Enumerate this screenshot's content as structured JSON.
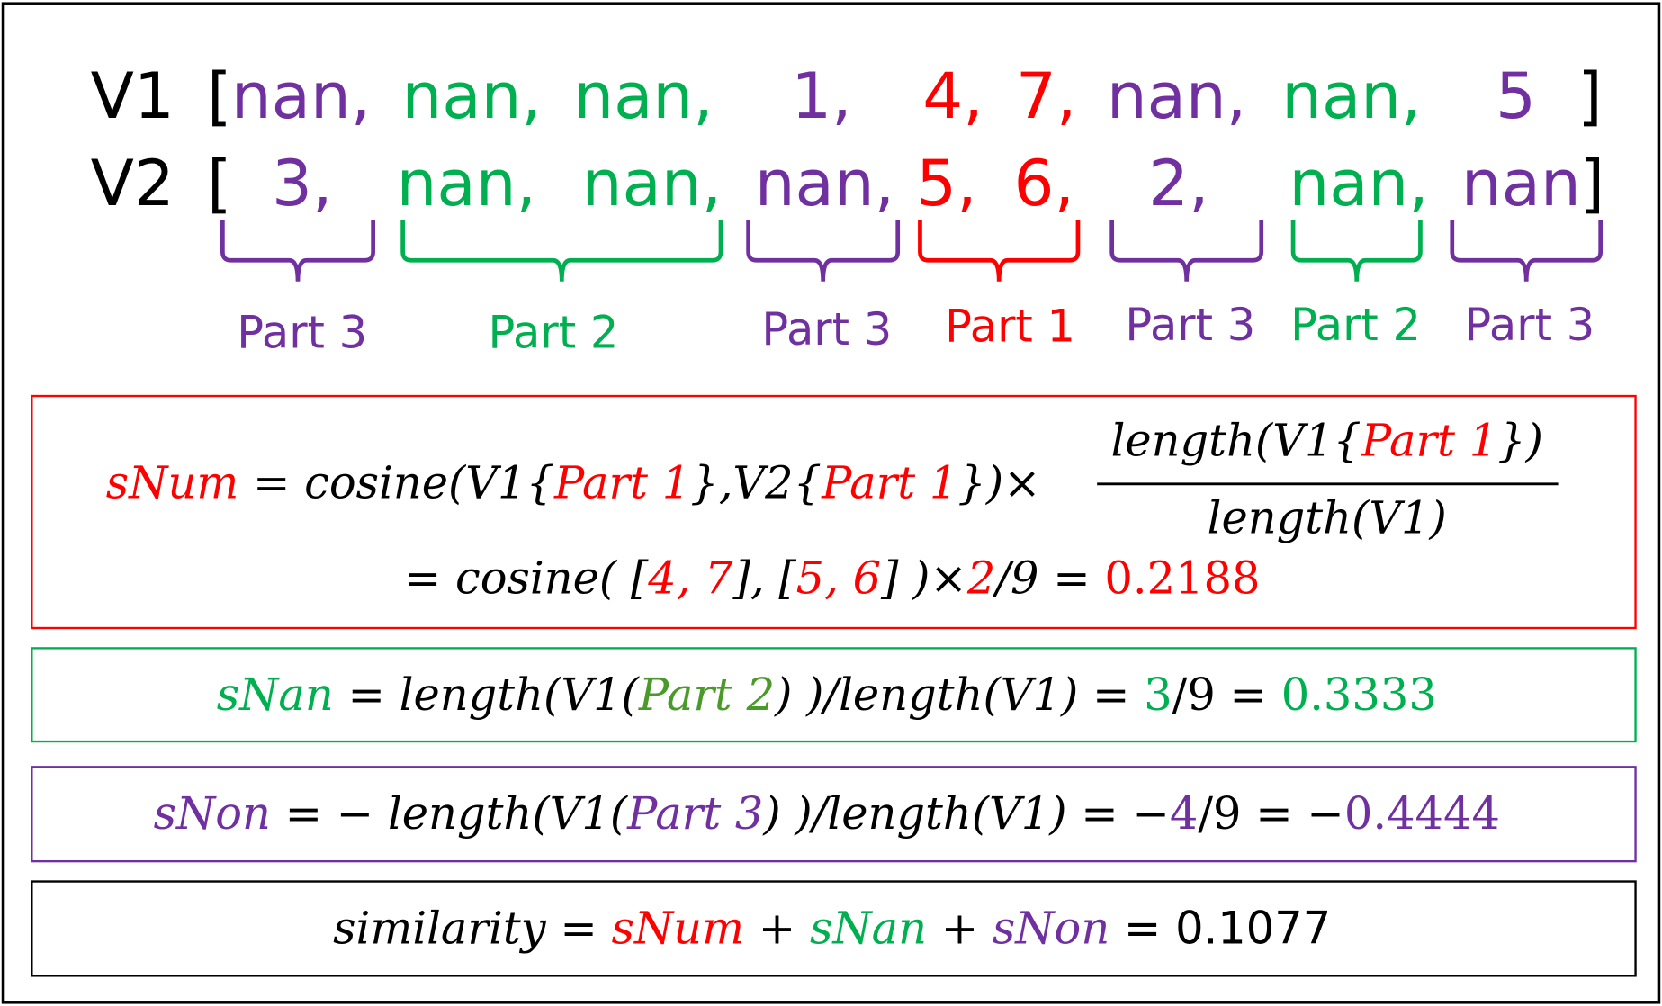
{
  "vectors": [
    {
      "label": "V1",
      "open": "[",
      "items": [
        "nan,",
        "nan,",
        "nan,",
        "1,",
        "4,",
        "7,",
        "nan,",
        "nan,",
        "5"
      ],
      "close": "]"
    },
    {
      "label": "V2",
      "open": "[",
      "items": [
        "3,",
        "nan,",
        "nan,",
        "nan,",
        "5,",
        "6,",
        "2,",
        "nan,",
        "nan"
      ],
      "close": "]"
    }
  ],
  "parts": [
    "Part 3",
    "Part 2",
    "Part 3",
    "Part 1",
    "Part 3",
    "Part 2",
    "Part 3"
  ],
  "formulas": {
    "snum_line1": [
      "sNum",
      " = cosine(V1{",
      "Part 1",
      "},V2{",
      "Part 1",
      "})×"
    ],
    "snum_numerator": [
      "length(V1{",
      "Part 1",
      "})"
    ],
    "snum_denominator": "length(V1)",
    "snum_line2": [
      "=  cosine( [",
      "4, 7",
      "], [",
      "5, 6",
      "] )×",
      "2",
      "/9 = ",
      "0.2188"
    ],
    "snan": [
      "sNan",
      " = length(V1(",
      "Part 2",
      ") )/length(V1) = ",
      "3",
      "/9 = ",
      "0.3333"
    ],
    "snon": [
      "sNon",
      " = − length(V1(",
      "Part 3",
      ") )/length(V1) = −",
      "4",
      "/9 = −",
      "0.4444"
    ],
    "similarity": [
      "similarity",
      " = ",
      "sNum",
      " + ",
      "sNan",
      " + ",
      "sNon",
      "  = 0.1077"
    ]
  }
}
